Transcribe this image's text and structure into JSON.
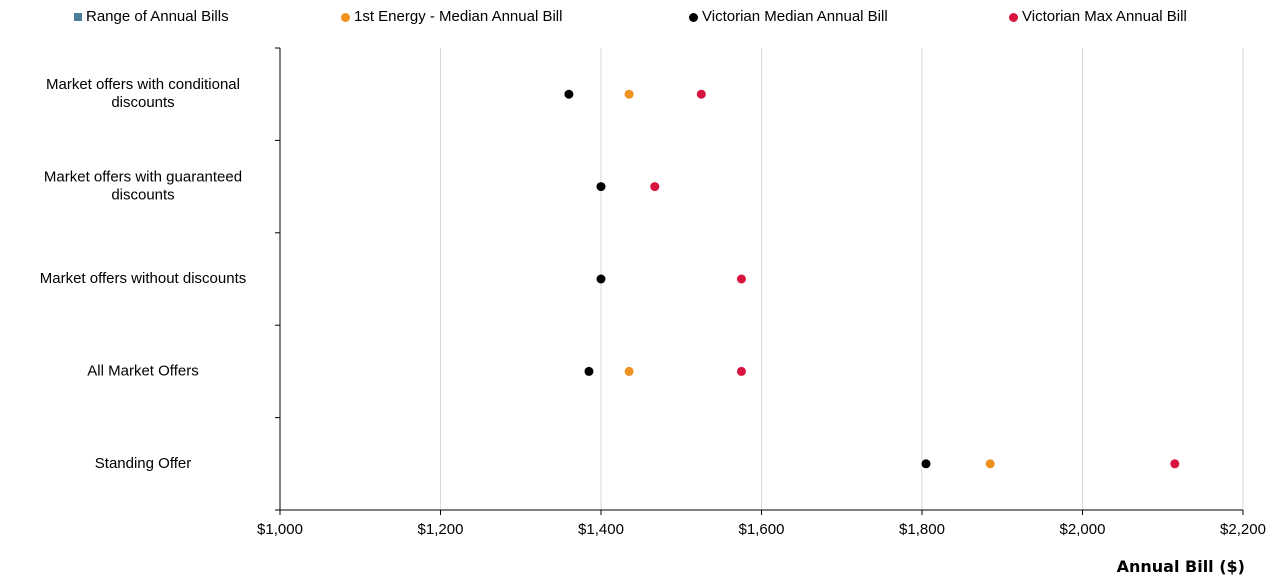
{
  "chart_data": {
    "type": "scatter",
    "orientation": "horizontal",
    "categories": [
      [
        "Market offers with conditional",
        "discounts"
      ],
      [
        "Market offers with guaranteed",
        "discounts"
      ],
      [
        "Market offers  without discounts"
      ],
      [
        "All Market Offers"
      ],
      [
        "Standing Offer"
      ]
    ],
    "legend_position": "top",
    "grid": {
      "vertical": true,
      "horizontal": false
    },
    "x": {
      "label": "Annual Bill ($)",
      "lim": [
        1000,
        2200
      ],
      "ticks": [
        1000,
        1200,
        1400,
        1600,
        1800,
        2000,
        2200
      ],
      "tick_labels": [
        "$1,000",
        "$1,200",
        "$1,400",
        "$1,600",
        "$1,800",
        "$2,000",
        "$2,200"
      ]
    },
    "series": [
      {
        "name": "Range of Annual Bills",
        "color": "#4a7f9c",
        "marker": "square",
        "values": [
          null,
          null,
          null,
          null,
          null
        ]
      },
      {
        "name": "1st Energy - Median Annual Bill",
        "color": "#f0901e",
        "marker": "circle",
        "values": [
          1435,
          null,
          null,
          1435,
          1885
        ]
      },
      {
        "name": "Victorian Median Annual Bill",
        "color": "#000000",
        "marker": "circle",
        "values": [
          1360,
          1400,
          1400,
          1385,
          1805
        ]
      },
      {
        "name": "Victorian Max Annual Bill",
        "color": "#d9133f",
        "marker": "circle",
        "values": [
          1525,
          1467,
          1575,
          1575,
          2115
        ]
      }
    ]
  }
}
